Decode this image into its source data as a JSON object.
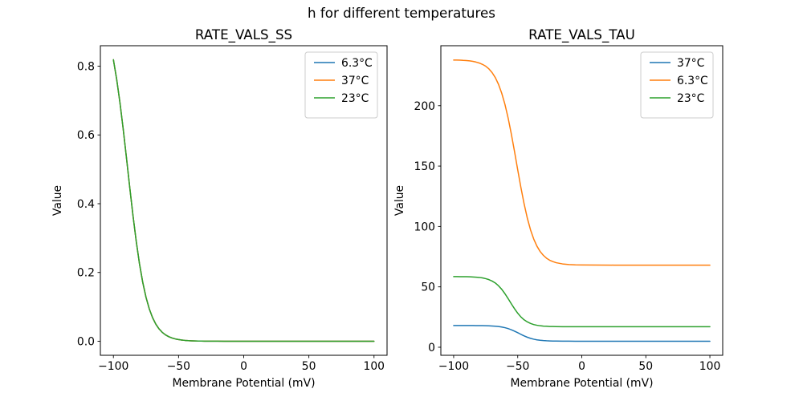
{
  "figure": {
    "suptitle": "h for different temperatures",
    "background_color": "#ffffff"
  },
  "palette": {
    "series_blue": "#1f77b4",
    "series_orange": "#ff7f0e",
    "series_green": "#2ca02c",
    "axis_color": "#000000",
    "legend_border": "#cccccc",
    "legend_background": "#ffffff"
  },
  "chart_data": [
    {
      "type": "line",
      "title": "RATE_VALS_SS",
      "xlabel": "Membrane Potential (mV)",
      "ylabel": "Value",
      "grid": false,
      "legend_position": "upper right",
      "xlim": [
        -110,
        110
      ],
      "ylim": [
        -0.0409,
        0.8595
      ],
      "xticks": [
        -100,
        -50,
        0,
        50,
        100
      ],
      "xtick_labels": [
        "−100",
        "−50",
        "0",
        "50",
        "100"
      ],
      "yticks": [
        0.0,
        0.2,
        0.4,
        0.6,
        0.8
      ],
      "ytick_labels": [
        "0.0",
        "0.2",
        "0.4",
        "0.6",
        "0.8"
      ],
      "x": [
        -100,
        -97.5,
        -95,
        -92.5,
        -90,
        -87.5,
        -85,
        -82.5,
        -80,
        -77.5,
        -75,
        -72.5,
        -70,
        -67.5,
        -65,
        -62.5,
        -60,
        -57.5,
        -55,
        -52.5,
        -50,
        -47.5,
        -45,
        -42.5,
        -40,
        -37.5,
        -35,
        -32.5,
        -30,
        -27.5,
        -25,
        -22.5,
        -20,
        -15,
        -10,
        -5,
        0,
        25,
        50,
        75,
        100
      ],
      "series": [
        {
          "name": "6.3°C",
          "color": "#1f77b4",
          "values": [
            0.8186,
            0.7621,
            0.6946,
            0.6176,
            0.5342,
            0.4488,
            0.3663,
            0.2911,
            0.2257,
            0.1715,
            0.1281,
            0.0945,
            0.069,
            0.05,
            0.036,
            0.0258,
            0.0185,
            0.0132,
            0.0094,
            0.0067,
            0.0048,
            0.0034,
            0.0024,
            0.0017,
            0.0012,
            0.0009,
            0.0006,
            0.0004,
            0.0003,
            0.0002,
            0.0002,
            0.0001,
            0.0001,
            0.0,
            0.0,
            0.0,
            0.0,
            0.0,
            0.0,
            0.0,
            0.0
          ]
        },
        {
          "name": "37°C",
          "color": "#ff7f0e",
          "values": [
            0.8186,
            0.7621,
            0.6946,
            0.6176,
            0.5342,
            0.4488,
            0.3663,
            0.2911,
            0.2257,
            0.1715,
            0.1281,
            0.0945,
            0.069,
            0.05,
            0.036,
            0.0258,
            0.0185,
            0.0132,
            0.0094,
            0.0067,
            0.0048,
            0.0034,
            0.0024,
            0.0017,
            0.0012,
            0.0009,
            0.0006,
            0.0004,
            0.0003,
            0.0002,
            0.0002,
            0.0001,
            0.0001,
            0.0,
            0.0,
            0.0,
            0.0,
            0.0,
            0.0,
            0.0,
            0.0
          ]
        },
        {
          "name": "23°C",
          "color": "#2ca02c",
          "values": [
            0.8186,
            0.7621,
            0.6946,
            0.6176,
            0.5342,
            0.4488,
            0.3663,
            0.2911,
            0.2257,
            0.1715,
            0.1281,
            0.0945,
            0.069,
            0.05,
            0.036,
            0.0258,
            0.0185,
            0.0132,
            0.0094,
            0.0067,
            0.0048,
            0.0034,
            0.0024,
            0.0017,
            0.0012,
            0.0009,
            0.0006,
            0.0004,
            0.0003,
            0.0002,
            0.0002,
            0.0001,
            0.0001,
            0.0,
            0.0,
            0.0,
            0.0,
            0.0,
            0.0,
            0.0,
            0.0
          ]
        }
      ]
    },
    {
      "type": "line",
      "title": "RATE_VALS_TAU",
      "xlabel": "Membrane Potential (mV)",
      "ylabel": "Value",
      "grid": false,
      "legend_position": "upper right",
      "xlim": [
        -110,
        110
      ],
      "ylim": [
        -6.65,
        249.65
      ],
      "xticks": [
        -100,
        -50,
        0,
        50,
        100
      ],
      "xtick_labels": [
        "−100",
        "−50",
        "0",
        "50",
        "100"
      ],
      "yticks": [
        0,
        50,
        100,
        150,
        200
      ],
      "ytick_labels": [
        "0",
        "50",
        "100",
        "150",
        "200"
      ],
      "x": [
        -100,
        -97.5,
        -95,
        -92.5,
        -90,
        -87.5,
        -85,
        -82.5,
        -80,
        -77.5,
        -75,
        -72.5,
        -70,
        -67.5,
        -65,
        -62.5,
        -60,
        -57.5,
        -55,
        -52.5,
        -50,
        -47.5,
        -45,
        -42.5,
        -40,
        -37.5,
        -35,
        -32.5,
        -30,
        -27.5,
        -25,
        -22.5,
        -20,
        -15,
        -10,
        -5,
        0,
        25,
        50,
        75,
        100
      ],
      "series": [
        {
          "name": "37°C",
          "color": "#1f77b4",
          "values": [
            18.0,
            18.0,
            17.99,
            17.99,
            17.99,
            17.98,
            17.97,
            17.95,
            17.93,
            17.89,
            17.83,
            17.74,
            17.62,
            17.43,
            17.15,
            16.76,
            16.21,
            15.46,
            14.5,
            13.34,
            12.04,
            10.69,
            9.41,
            8.29,
            7.37,
            6.67,
            6.15,
            5.78,
            5.53,
            5.35,
            5.23,
            5.16,
            5.1,
            5.04,
            5.02,
            5.01,
            5.0,
            5.0,
            5.0,
            5.0,
            5.0
          ]
        },
        {
          "name": "6.3°C",
          "color": "#ff7f0e",
          "values": [
            237.8,
            237.8,
            237.7,
            237.5,
            237.4,
            237.1,
            236.7,
            236.1,
            235.3,
            234.2,
            232.7,
            230.5,
            227.4,
            223.3,
            217.7,
            210.4,
            201.2,
            189.9,
            176.6,
            162.1,
            146.9,
            132.2,
            118.7,
            106.9,
            97.2,
            89.6,
            83.7,
            79.3,
            76.1,
            73.7,
            72.0,
            70.9,
            70.0,
            69.0,
            68.5,
            68.2,
            68.1,
            68.0,
            68.0,
            68.0,
            68.0
          ]
        },
        {
          "name": "23°C",
          "color": "#2ca02c",
          "values": [
            58.5,
            58.5,
            58.4,
            58.4,
            58.4,
            58.3,
            58.2,
            58.0,
            57.8,
            57.4,
            56.8,
            56.0,
            54.8,
            53.2,
            50.9,
            48.0,
            44.4,
            40.3,
            36.0,
            31.9,
            28.2,
            25.1,
            22.7,
            21.0,
            19.7,
            18.8,
            18.2,
            17.8,
            17.5,
            17.4,
            17.2,
            17.2,
            17.1,
            17.0,
            17.0,
            17.0,
            17.0,
            17.0,
            17.0,
            17.0,
            17.0
          ]
        }
      ]
    }
  ]
}
